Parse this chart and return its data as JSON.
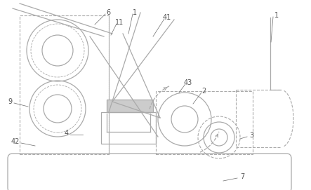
{
  "bg_color": "#ffffff",
  "lc": "#aaaaaa",
  "lw": 0.9,
  "figsize": [
    4.43,
    2.71
  ],
  "dpi": 100,
  "label_fs": 7,
  "label_color": "#555555"
}
